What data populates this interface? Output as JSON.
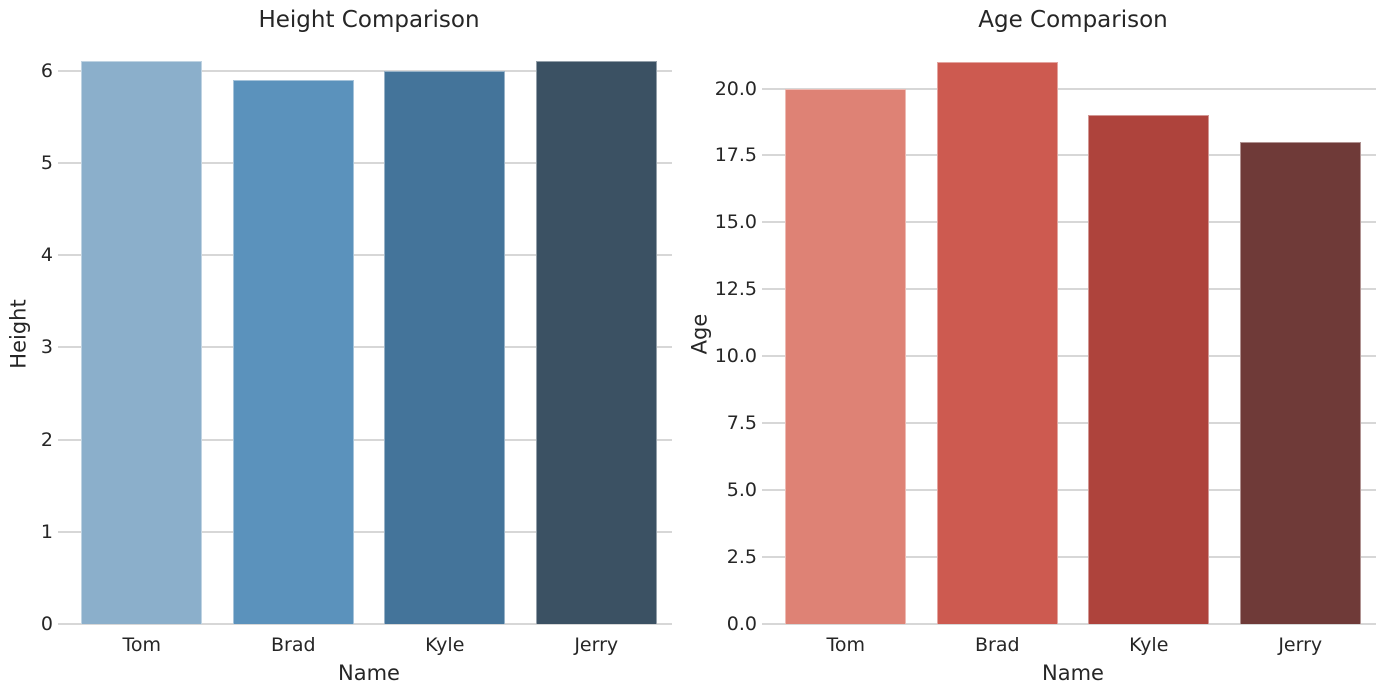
{
  "style": {
    "background": "#ffffff",
    "grid_color": "#d7d7d7",
    "text_color": "#262626"
  },
  "chart_data": [
    {
      "type": "bar",
      "title": "Height Comparison",
      "xlabel": "Name",
      "ylabel": "Height",
      "categories": [
        "Tom",
        "Brad",
        "Kyle",
        "Jerry"
      ],
      "values": [
        6.1,
        5.9,
        6.0,
        6.1
      ],
      "ylim": [
        0,
        6.3
      ],
      "yticks": [
        0,
        1,
        2,
        3,
        4,
        5,
        6
      ],
      "ytick_labels": [
        "0",
        "1",
        "2",
        "3",
        "4",
        "5",
        "6"
      ],
      "bar_colors": [
        "#8bafcb",
        "#5b92bc",
        "#44749a",
        "#3b5163"
      ],
      "grid": true,
      "legend_position": "none"
    },
    {
      "type": "bar",
      "title": "Age Comparison",
      "xlabel": "Name",
      "ylabel": "Age",
      "categories": [
        "Tom",
        "Brad",
        "Kyle",
        "Jerry"
      ],
      "values": [
        20,
        21,
        19,
        18
      ],
      "ylim": [
        0,
        21.7
      ],
      "yticks": [
        0,
        2.5,
        5,
        7.5,
        10,
        12.5,
        15,
        17.5,
        20
      ],
      "ytick_labels": [
        "0.0",
        "2.5",
        "5.0",
        "7.5",
        "10.0",
        "12.5",
        "15.0",
        "17.5",
        "20.0"
      ],
      "bar_colors": [
        "#de8275",
        "#cd5a50",
        "#ae433c",
        "#6f3a38"
      ],
      "grid": true,
      "legend_position": "none"
    }
  ]
}
